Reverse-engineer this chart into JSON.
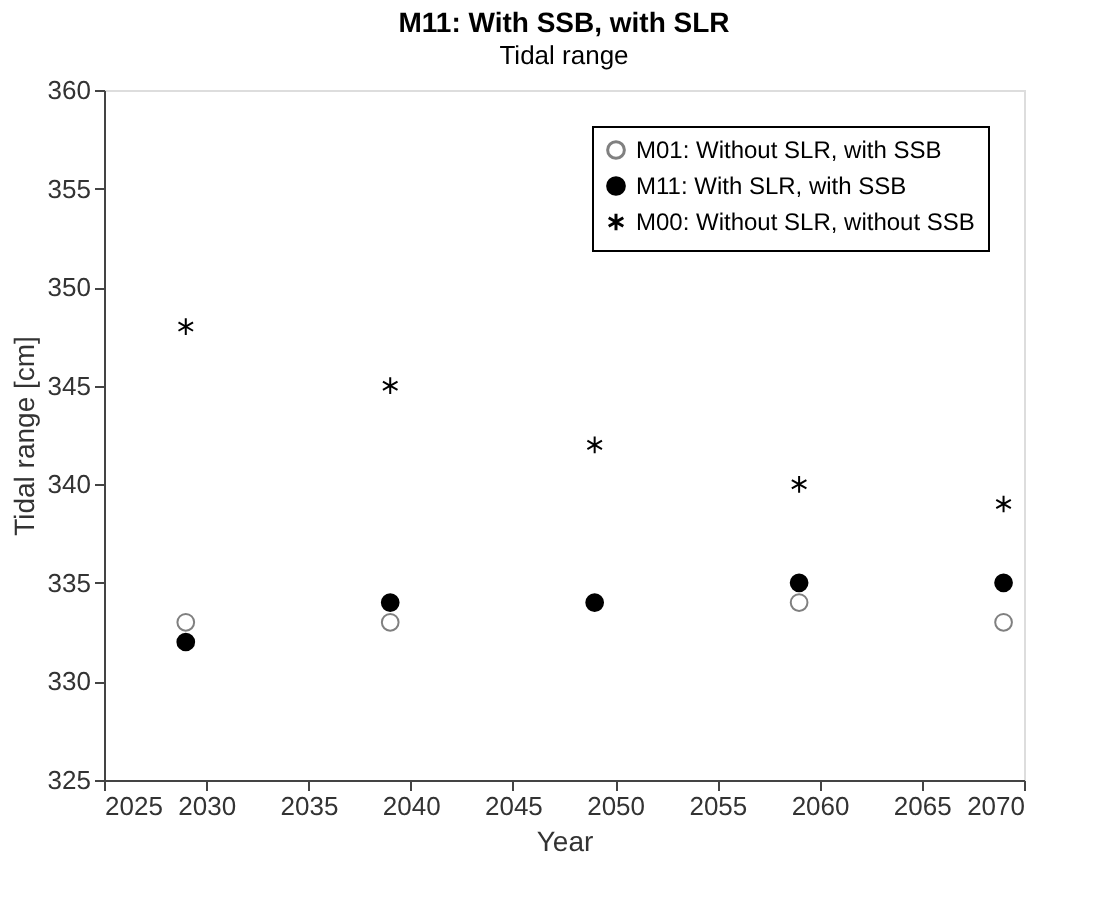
{
  "chart_data": {
    "type": "scatter",
    "title": "M11: With SSB, with SLR",
    "subtitle": "Tidal range",
    "xlabel": "Year",
    "ylabel": "Tidal range [cm]",
    "x": [
      2029,
      2039,
      2049,
      2059,
      2069
    ],
    "series": [
      {
        "name": "M01: Without SLR, with SSB",
        "color": "#808080",
        "marker": "circle",
        "values": [
          333,
          333,
          null,
          334,
          333
        ]
      },
      {
        "name": "M11: With SLR, with SSB",
        "color": "#000000",
        "marker": "circle",
        "values": [
          332,
          334,
          334,
          335,
          335
        ]
      },
      {
        "name": "M00: Without SLR, without SSB",
        "color": "#000000",
        "marker": "cross",
        "values": [
          348,
          345,
          342,
          340,
          339
        ]
      }
    ],
    "xlim": [
      2025,
      2070
    ],
    "xticks": [
      2025,
      2030,
      2035,
      2040,
      2045,
      2050,
      2055,
      2060,
      2065,
      2070
    ],
    "ylim": [
      325,
      360
    ],
    "yticks": [
      325,
      330,
      335,
      340,
      345,
      350,
      355,
      360
    ],
    "grid": false,
    "legend": "top right"
  }
}
